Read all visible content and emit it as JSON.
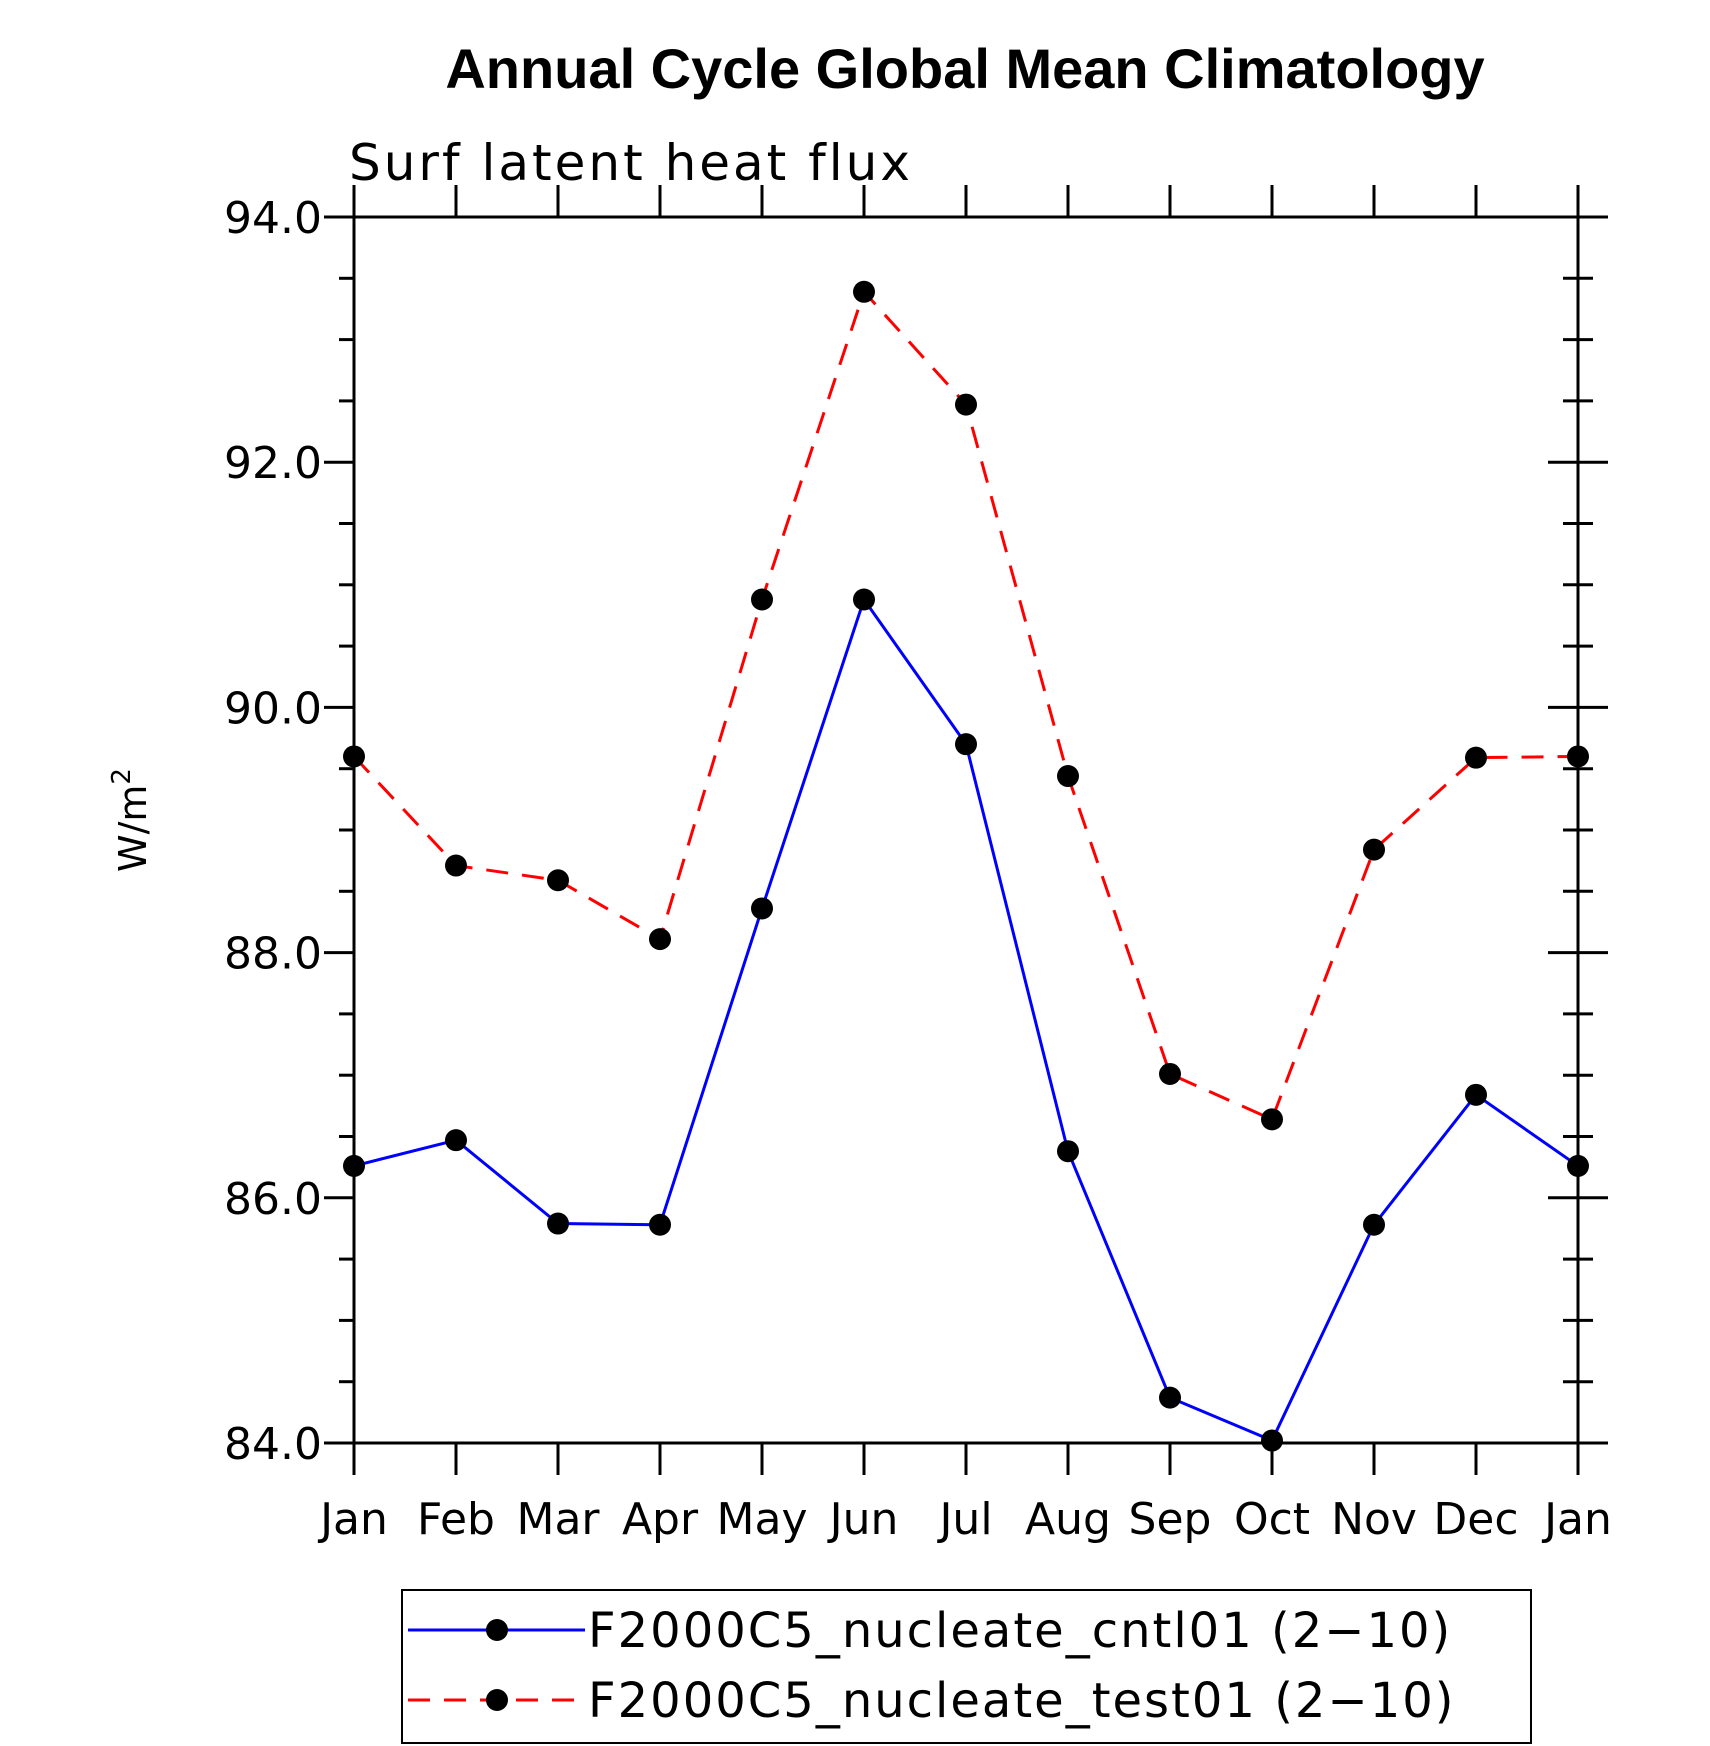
{
  "chart_data": {
    "type": "line",
    "title": "Annual Cycle Global Mean Climatology",
    "subtitle": "Surf latent heat flux",
    "ylabel": "W/m",
    "ylabel_superscript": "2",
    "xlabel": "",
    "categories": [
      "Jan",
      "Feb",
      "Mar",
      "Apr",
      "May",
      "Jun",
      "Jul",
      "Aug",
      "Sep",
      "Oct",
      "Nov",
      "Dec",
      "Jan"
    ],
    "ylim": [
      84.0,
      94.0
    ],
    "yticks": [
      "84.0",
      "86.0",
      "88.0",
      "90.0",
      "92.0",
      "94.0"
    ],
    "grid": false,
    "legend_position": "bottom",
    "series": [
      {
        "name": "F2000C5_nucleate_cntl01 (2−10)",
        "color": "#0000ff",
        "line_style": "solid",
        "marker": "filled-circle",
        "values": [
          86.26,
          86.47,
          85.79,
          85.78,
          88.36,
          90.88,
          89.7,
          86.38,
          84.37,
          84.02,
          85.78,
          86.84,
          86.26
        ]
      },
      {
        "name": "F2000C5_nucleate_test01 (2−10)",
        "color": "#ff0000",
        "line_style": "dashed",
        "marker": "filled-circle",
        "values": [
          89.6,
          88.71,
          88.59,
          88.11,
          90.88,
          93.39,
          92.47,
          89.44,
          87.01,
          86.64,
          88.84,
          89.59,
          89.6
        ]
      }
    ]
  }
}
